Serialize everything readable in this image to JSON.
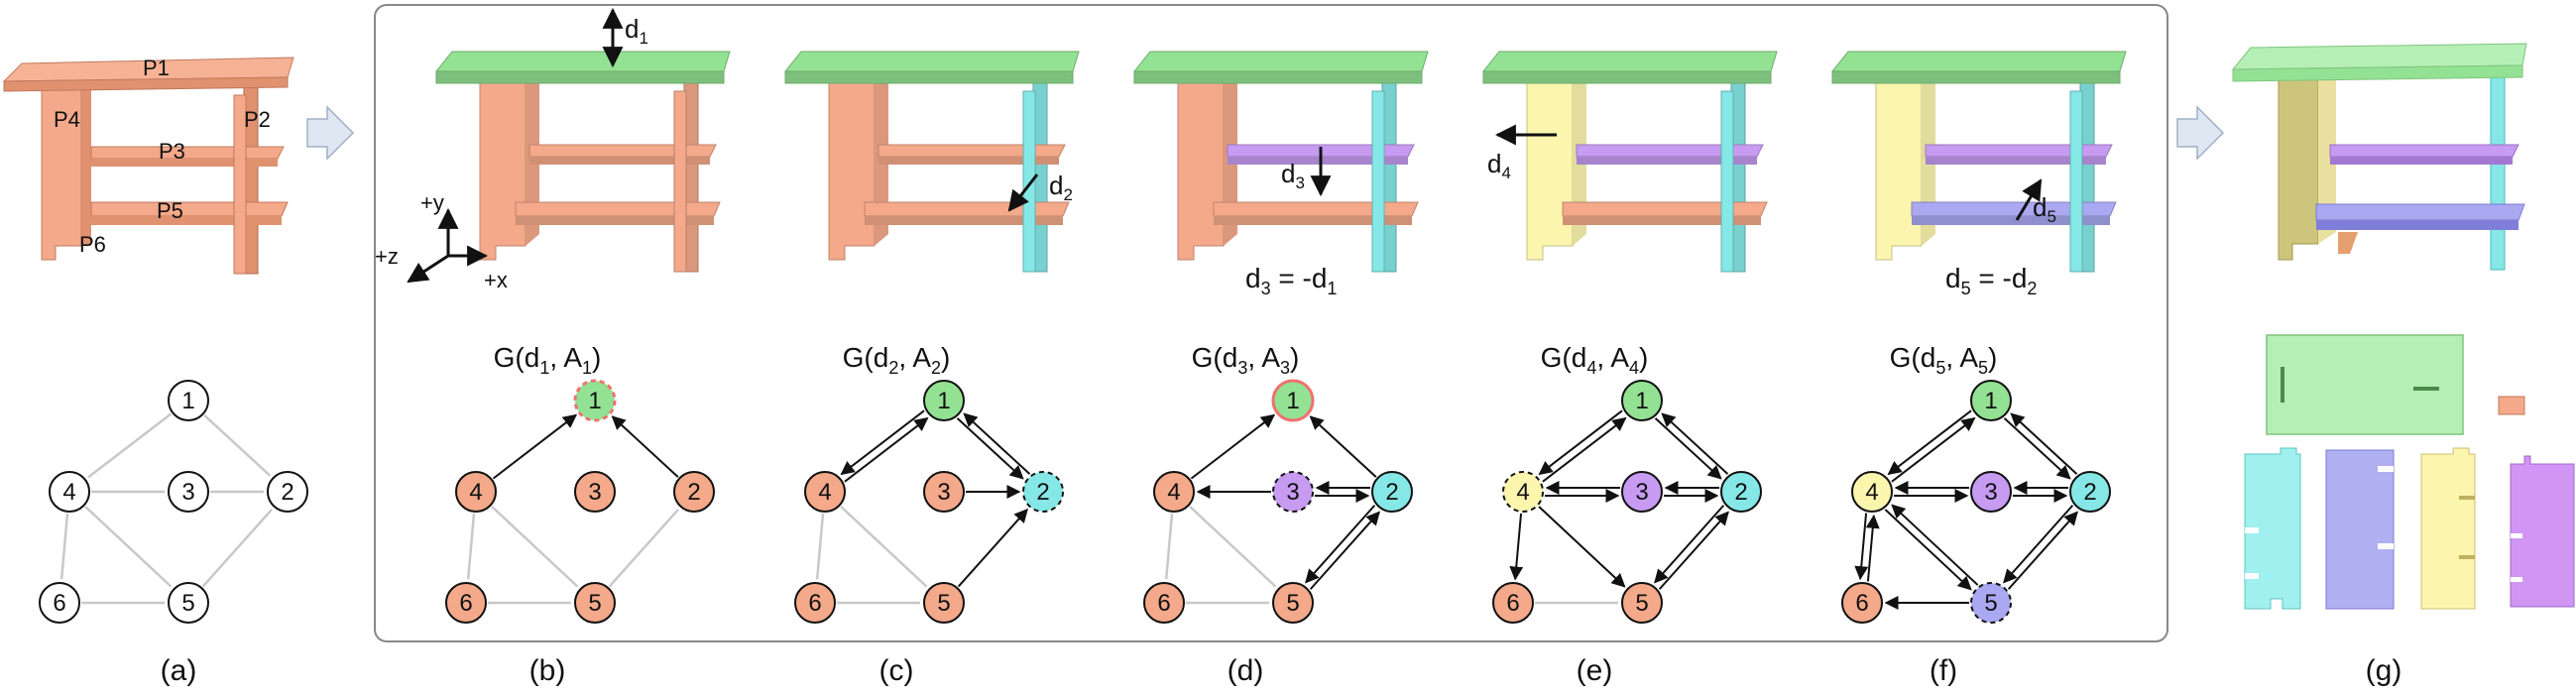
{
  "colors": {
    "orange": "#f4a98a",
    "orange_dark": "#d9876a",
    "green": "#93e293",
    "green_dark": "#6cc56c",
    "cyan": "#85e8e6",
    "purple": "#c69bf1",
    "yellow": "#fbf5ae",
    "blue": "#a9a8f1",
    "outline_red": "#f07070",
    "edge_gray": "#c8c8c8",
    "frame": "#888888"
  },
  "panel_a": {
    "part_labels": [
      "P1",
      "P2",
      "P3",
      "P4",
      "P5",
      "P6"
    ]
  },
  "graph_titles": {
    "b": {
      "prefix": "G(d",
      "sub1": "1",
      "mid": ", A",
      "sub2": "1",
      "suffix": ")"
    },
    "c": {
      "prefix": "G(d",
      "sub1": "2",
      "mid": ", A",
      "sub2": "2",
      "suffix": ")"
    },
    "d": {
      "prefix": "G(d",
      "sub1": "3",
      "mid": ", A",
      "sub2": "3",
      "suffix": ")"
    },
    "e": {
      "prefix": "G(d",
      "sub1": "4",
      "mid": ", A",
      "sub2": "4",
      "suffix": ")"
    },
    "f": {
      "prefix": "G(d",
      "sub1": "5",
      "mid": ", A",
      "sub2": "5",
      "suffix": ")"
    }
  },
  "direction_labels": {
    "d1": {
      "base": "d",
      "sub": "1"
    },
    "d2": {
      "base": "d",
      "sub": "2"
    },
    "d3": {
      "base": "d",
      "sub": "3"
    },
    "d4": {
      "base": "d",
      "sub": "4"
    },
    "d5": {
      "base": "d",
      "sub": "5"
    }
  },
  "equations": {
    "d": {
      "lhs": "d",
      "lsub": "3",
      "op": " = -d",
      "rsub": "1"
    },
    "f": {
      "lhs": "d",
      "lsub": "5",
      "op": " = -d",
      "rsub": "2"
    }
  },
  "axes": {
    "y": "+y",
    "z": "+z",
    "x": "+x"
  },
  "node_labels": [
    "1",
    "2",
    "3",
    "4",
    "5",
    "6"
  ],
  "panel_labels": [
    "(a)",
    "(b)",
    "(c)",
    "(d)",
    "(e)",
    "(f)",
    "(g)"
  ],
  "graphs": {
    "a": {
      "fills": [
        "#ffffff",
        "#ffffff",
        "#ffffff",
        "#ffffff",
        "#ffffff",
        "#ffffff"
      ],
      "dashed": [],
      "red_outline": []
    },
    "b": {
      "fills": [
        "#93e293",
        "#f4a98a",
        "#f4a98a",
        "#f4a98a",
        "#f4a98a",
        "#f4a98a"
      ],
      "dashed": [
        1
      ],
      "red_outline": [
        1
      ]
    },
    "c": {
      "fills": [
        "#93e293",
        "#85e8e6",
        "#f4a98a",
        "#f4a98a",
        "#f4a98a",
        "#f4a98a"
      ],
      "dashed": [
        2
      ],
      "red_outline": []
    },
    "d": {
      "fills": [
        "#93e293",
        "#85e8e6",
        "#c69bf1",
        "#f4a98a",
        "#f4a98a",
        "#f4a98a"
      ],
      "dashed": [
        3
      ],
      "red_outline": [
        1
      ]
    },
    "e": {
      "fills": [
        "#93e293",
        "#85e8e6",
        "#c69bf1",
        "#fbf5ae",
        "#f4a98a",
        "#f4a98a"
      ],
      "dashed": [
        4
      ],
      "red_outline": []
    },
    "f": {
      "fills": [
        "#93e293",
        "#85e8e6",
        "#c69bf1",
        "#fbf5ae",
        "#a9a8f1",
        "#f4a98a"
      ],
      "dashed": [
        5
      ],
      "red_outline": []
    }
  }
}
